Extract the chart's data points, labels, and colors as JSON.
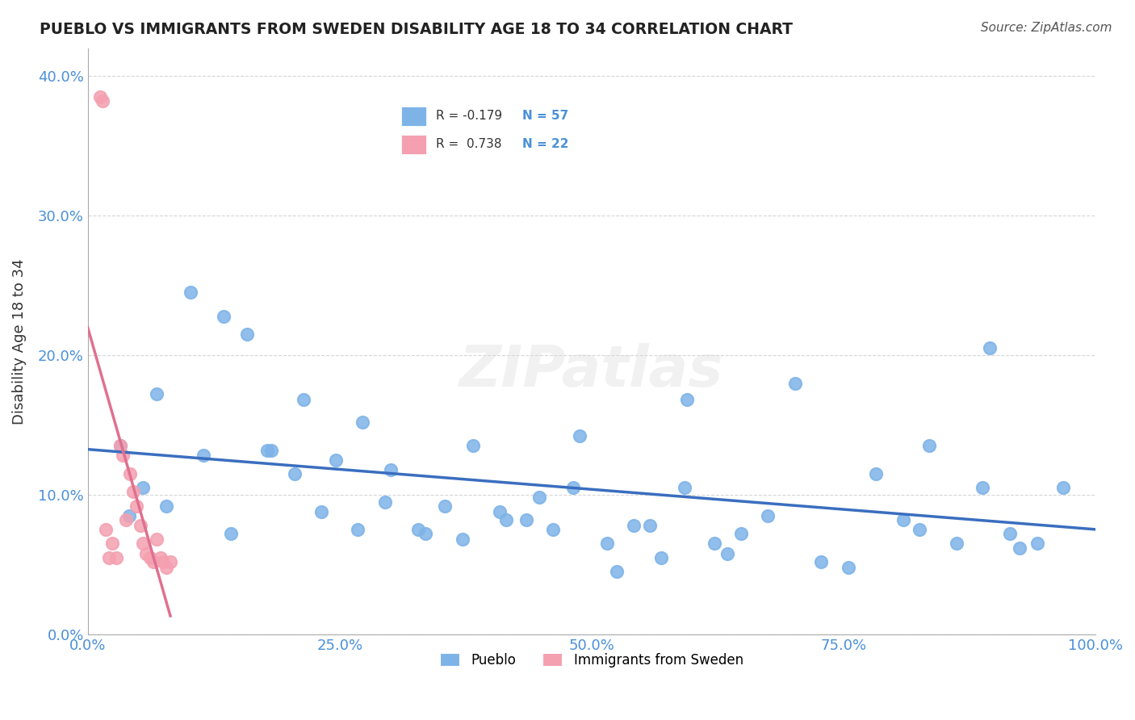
{
  "title": "PUEBLO VS IMMIGRANTS FROM SWEDEN DISABILITY AGE 18 TO 34 CORRELATION CHART",
  "source": "Source: ZipAtlas.com",
  "xlabel": "",
  "ylabel": "Disability Age 18 to 34",
  "xlim": [
    0.0,
    100.0
  ],
  "ylim": [
    0.0,
    42.0
  ],
  "yticks": [
    0.0,
    10.0,
    20.0,
    30.0,
    40.0
  ],
  "xticks": [
    0.0,
    25.0,
    50.0,
    75.0,
    100.0
  ],
  "pueblo_color": "#7EB3E8",
  "sweden_color": "#F4A0B0",
  "pueblo_line_color": "#3A6EBF",
  "sweden_line_color": "#E07090",
  "pueblo_R": -0.179,
  "pueblo_N": 57,
  "sweden_R": 0.738,
  "sweden_N": 22,
  "pueblo_x": [
    3.2,
    5.5,
    6.8,
    10.2,
    13.5,
    15.8,
    18.2,
    21.4,
    24.6,
    27.3,
    30.1,
    32.8,
    35.4,
    38.2,
    40.9,
    43.5,
    46.2,
    48.8,
    51.5,
    54.2,
    56.9,
    59.5,
    62.2,
    64.8,
    67.5,
    70.2,
    72.8,
    75.5,
    78.2,
    80.9,
    83.5,
    86.2,
    88.8,
    91.5,
    94.2,
    96.8,
    4.1,
    7.8,
    11.5,
    14.2,
    17.8,
    20.5,
    23.2,
    26.8,
    29.5,
    33.5,
    37.2,
    41.5,
    44.8,
    48.2,
    52.5,
    55.8,
    59.2,
    63.5,
    82.5,
    89.5,
    92.5
  ],
  "pueblo_y": [
    13.5,
    10.5,
    17.2,
    24.5,
    22.8,
    21.5,
    13.2,
    16.8,
    12.5,
    15.2,
    11.8,
    7.5,
    9.2,
    13.5,
    8.8,
    8.2,
    7.5,
    14.2,
    6.5,
    7.8,
    5.5,
    16.8,
    6.5,
    7.2,
    8.5,
    18.0,
    5.2,
    4.8,
    11.5,
    8.2,
    13.5,
    6.5,
    10.5,
    7.2,
    6.5,
    10.5,
    8.5,
    9.2,
    12.8,
    7.2,
    13.2,
    11.5,
    8.8,
    7.5,
    9.5,
    7.2,
    6.8,
    8.2,
    9.8,
    10.5,
    4.5,
    7.8,
    10.5,
    5.8,
    7.5,
    20.5,
    6.2
  ],
  "sweden_x": [
    1.2,
    1.5,
    1.8,
    2.1,
    2.4,
    2.8,
    3.2,
    3.5,
    3.8,
    4.2,
    4.5,
    4.8,
    5.2,
    5.5,
    5.8,
    6.2,
    6.5,
    6.8,
    7.2,
    7.5,
    7.8,
    8.2
  ],
  "sweden_y": [
    38.5,
    38.2,
    7.5,
    5.5,
    6.5,
    5.5,
    13.5,
    12.8,
    8.2,
    11.5,
    10.2,
    9.2,
    7.8,
    6.5,
    5.8,
    5.5,
    5.2,
    6.8,
    5.5,
    5.2,
    4.8,
    5.2
  ],
  "background_color": "#FFFFFF",
  "watermark_text": "ZIPatlas",
  "watermark_color": "#DDDDDD"
}
